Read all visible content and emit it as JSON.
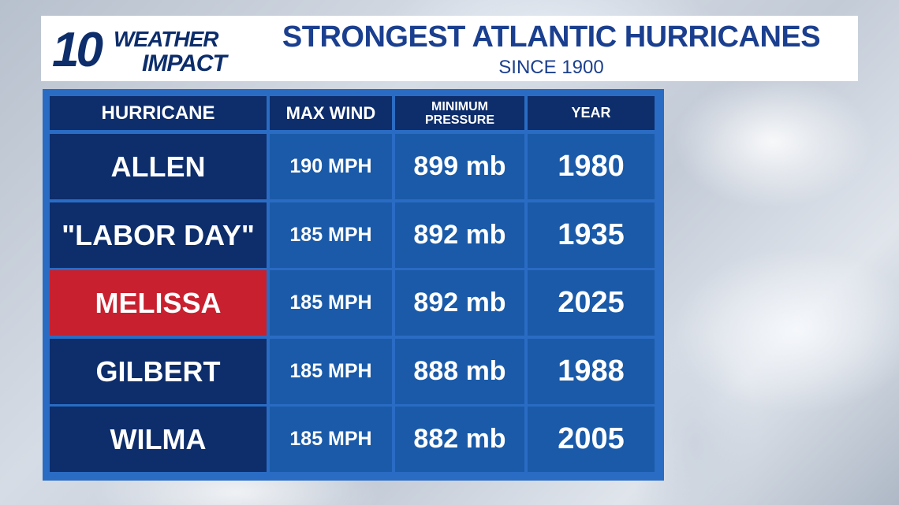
{
  "header": {
    "logo": {
      "number": "10",
      "line1": "WEATHER",
      "line2": "IMPACT"
    },
    "title": "STRONGEST ATLANTIC HURRICANES",
    "subtitle": "SINCE 1900"
  },
  "table": {
    "columns": [
      "HURRICANE",
      "MAX WIND",
      "MINIMUM PRESSURE",
      "YEAR"
    ],
    "rows": [
      [
        "ALLEN",
        "190 MPH",
        "899 mb",
        "1980"
      ],
      [
        "\"LABOR DAY\"",
        "185 MPH",
        "892 mb",
        "1935"
      ],
      [
        "MELISSA",
        "185 MPH",
        "892 mb",
        "2025"
      ],
      [
        "GILBERT",
        "185 MPH",
        "888 mb",
        "1988"
      ],
      [
        "WILMA",
        "185 MPH",
        "882 mb",
        "2005"
      ]
    ]
  }
}
